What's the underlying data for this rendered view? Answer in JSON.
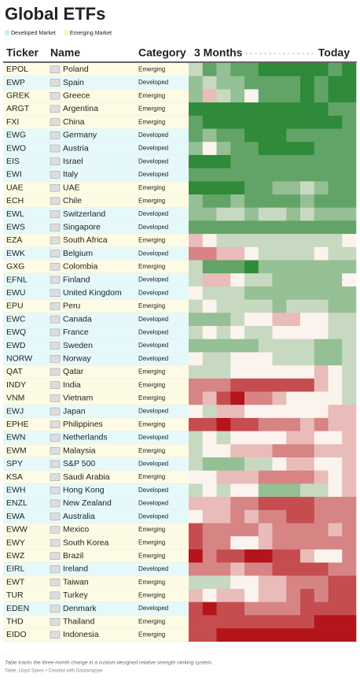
{
  "title": "Global ETFs",
  "legend": [
    {
      "label": "Developed Market",
      "color": "#c9f1f3"
    },
    {
      "label": "Emerging Market",
      "color": "#fbf5c4"
    }
  ],
  "headers": {
    "ticker": "Ticker",
    "name": "Name",
    "category": "Category",
    "start": "3 Months",
    "end": "Today"
  },
  "heat_scale": {
    "min": -4,
    "max": 4,
    "low_color": "#b3151b",
    "mid_color": "#fbf3ee",
    "high_color": "#2f8a3a"
  },
  "row_categories": {
    "Developed": "#e6f9fa",
    "Emerging": "#fdfbe4"
  },
  "rows": [
    {
      "ticker": "EPOL",
      "name": "Poland",
      "category": "Emerging",
      "heat": [
        1,
        3,
        2,
        3,
        3,
        4,
        4,
        4,
        4,
        4,
        3,
        4
      ]
    },
    {
      "ticker": "EWP",
      "name": "Spain",
      "category": "Developed",
      "heat": [
        2,
        1,
        2,
        2,
        3,
        3,
        3,
        3,
        4,
        3,
        4,
        4
      ]
    },
    {
      "ticker": "GREK",
      "name": "Greece",
      "category": "Emerging",
      "heat": [
        2,
        -1,
        1,
        2,
        0,
        3,
        3,
        3,
        4,
        3,
        4,
        4
      ]
    },
    {
      "ticker": "ARGT",
      "name": "Argentina",
      "category": "Emerging",
      "heat": [
        4,
        4,
        4,
        4,
        4,
        4,
        4,
        4,
        4,
        4,
        3,
        3
      ]
    },
    {
      "ticker": "FXI",
      "name": "China",
      "category": "Emerging",
      "heat": [
        3,
        4,
        4,
        4,
        4,
        4,
        4,
        4,
        4,
        4,
        4,
        3
      ]
    },
    {
      "ticker": "EWG",
      "name": "Germany",
      "category": "Developed",
      "heat": [
        3,
        2,
        3,
        3,
        4,
        4,
        4,
        3,
        3,
        3,
        3,
        3
      ]
    },
    {
      "ticker": "EWO",
      "name": "Austria",
      "category": "Developed",
      "heat": [
        2,
        0,
        2,
        3,
        3,
        4,
        4,
        4,
        4,
        3,
        3,
        3
      ]
    },
    {
      "ticker": "EIS",
      "name": "Israel",
      "category": "Developed",
      "heat": [
        4,
        4,
        4,
        3,
        3,
        3,
        3,
        3,
        3,
        3,
        3,
        3
      ]
    },
    {
      "ticker": "EWI",
      "name": "Italy",
      "category": "Developed",
      "heat": [
        3,
        3,
        3,
        3,
        3,
        3,
        3,
        3,
        3,
        3,
        3,
        3
      ]
    },
    {
      "ticker": "UAE",
      "name": "UAE",
      "category": "Emerging",
      "heat": [
        4,
        4,
        4,
        4,
        3,
        3,
        2,
        2,
        1,
        2,
        3,
        3
      ]
    },
    {
      "ticker": "ECH",
      "name": "Chile",
      "category": "Emerging",
      "heat": [
        2,
        3,
        3,
        2,
        3,
        3,
        3,
        3,
        2,
        3,
        3,
        3
      ]
    },
    {
      "ticker": "EWL",
      "name": "Switzerland",
      "category": "Developed",
      "heat": [
        2,
        2,
        1,
        1,
        2,
        1,
        1,
        2,
        1,
        2,
        2,
        2
      ]
    },
    {
      "ticker": "EWS",
      "name": "Singapore",
      "category": "Developed",
      "heat": [
        3,
        3,
        3,
        3,
        3,
        3,
        3,
        3,
        3,
        3,
        3,
        3
      ]
    },
    {
      "ticker": "EZA",
      "name": "South Africa",
      "category": "Emerging",
      "heat": [
        -1,
        0,
        1,
        1,
        1,
        1,
        1,
        1,
        1,
        1,
        1,
        0
      ]
    },
    {
      "ticker": "EWK",
      "name": "Belgium",
      "category": "Developed",
      "heat": [
        -2,
        -2,
        -1,
        -1,
        0,
        1,
        1,
        1,
        1,
        0,
        1,
        1
      ]
    },
    {
      "ticker": "GXG",
      "name": "Colombia",
      "category": "Emerging",
      "heat": [
        1,
        3,
        3,
        3,
        4,
        2,
        2,
        2,
        2,
        2,
        2,
        2
      ]
    },
    {
      "ticker": "EFNL",
      "name": "Finland",
      "category": "Developed",
      "heat": [
        1,
        -1,
        -1,
        0,
        1,
        1,
        2,
        2,
        2,
        2,
        2,
        0
      ]
    },
    {
      "ticker": "EWU",
      "name": "United Kingdom",
      "category": "Developed",
      "heat": [
        0,
        1,
        1,
        1,
        2,
        2,
        2,
        2,
        2,
        2,
        2,
        2
      ]
    },
    {
      "ticker": "EPU",
      "name": "Peru",
      "category": "Emerging",
      "heat": [
        1,
        0,
        1,
        1,
        1,
        1,
        2,
        1,
        1,
        1,
        2,
        2
      ]
    },
    {
      "ticker": "EWC",
      "name": "Canada",
      "category": "Developed",
      "heat": [
        2,
        2,
        2,
        1,
        0,
        0,
        -1,
        -1,
        0,
        0,
        1,
        1
      ]
    },
    {
      "ticker": "EWQ",
      "name": "France",
      "category": "Developed",
      "heat": [
        1,
        0,
        1,
        0,
        1,
        1,
        0,
        0,
        0,
        0,
        1,
        1
      ]
    },
    {
      "ticker": "EWD",
      "name": "Sweden",
      "category": "Developed",
      "heat": [
        2,
        2,
        2,
        2,
        2,
        1,
        1,
        1,
        1,
        2,
        2,
        1
      ]
    },
    {
      "ticker": "NORW",
      "name": "Norway",
      "category": "Developed",
      "heat": [
        0,
        1,
        1,
        0,
        0,
        0,
        1,
        1,
        1,
        2,
        2,
        1
      ]
    },
    {
      "ticker": "QAT",
      "name": "Qatar",
      "category": "Emerging",
      "heat": [
        1,
        1,
        1,
        0,
        0,
        0,
        0,
        0,
        0,
        -1,
        0,
        1
      ]
    },
    {
      "ticker": "INDY",
      "name": "India",
      "category": "Emerging",
      "heat": [
        -2,
        -2,
        -2,
        -3,
        -3,
        -3,
        -3,
        -3,
        -3,
        -1,
        0,
        1
      ]
    },
    {
      "ticker": "VNM",
      "name": "Vietnam",
      "category": "Emerging",
      "heat": [
        -2,
        -1,
        -3,
        -4,
        -2,
        -2,
        -1,
        0,
        0,
        0,
        0,
        1
      ]
    },
    {
      "ticker": "EWJ",
      "name": "Japan",
      "category": "Developed",
      "heat": [
        0,
        1,
        -1,
        -1,
        0,
        0,
        0,
        0,
        0,
        0,
        -1,
        -1
      ]
    },
    {
      "ticker": "EPHE",
      "name": "Philippines",
      "category": "Emerging",
      "heat": [
        -3,
        -3,
        -4,
        -3,
        -3,
        -2,
        -2,
        -2,
        -1,
        -2,
        -1,
        -1
      ]
    },
    {
      "ticker": "EWN",
      "name": "Netherlands",
      "category": "Developed",
      "heat": [
        1,
        0,
        1,
        0,
        0,
        0,
        0,
        -1,
        -1,
        0,
        0,
        -1
      ]
    },
    {
      "ticker": "EWM",
      "name": "Malaysia",
      "category": "Emerging",
      "heat": [
        1,
        0,
        0,
        -1,
        -1,
        -1,
        -2,
        -2,
        -2,
        -1,
        -1,
        -1
      ]
    },
    {
      "ticker": "SPY",
      "name": "S&P 500",
      "category": "Developed",
      "heat": [
        1,
        2,
        2,
        2,
        1,
        1,
        0,
        -1,
        -1,
        0,
        0,
        -1
      ]
    },
    {
      "ticker": "KSA",
      "name": "Saudi Arabia",
      "category": "Emerging",
      "heat": [
        0,
        0,
        -1,
        -1,
        -1,
        -2,
        -2,
        -2,
        -2,
        -1,
        0,
        -1
      ]
    },
    {
      "ticker": "EWH",
      "name": "Hong Kong",
      "category": "Developed",
      "heat": [
        1,
        0,
        1,
        0,
        0,
        2,
        2,
        2,
        1,
        1,
        0,
        -1
      ]
    },
    {
      "ticker": "ENZL",
      "name": "New Zealand",
      "category": "Developed",
      "heat": [
        -1,
        -1,
        -1,
        -2,
        -2,
        -3,
        -3,
        -3,
        -3,
        -2,
        -2,
        -2
      ]
    },
    {
      "ticker": "EWA",
      "name": "Australia",
      "category": "Developed",
      "heat": [
        0,
        -1,
        -1,
        -2,
        -1,
        -2,
        -2,
        -3,
        -3,
        -2,
        -2,
        -2
      ]
    },
    {
      "ticker": "EWW",
      "name": "Mexico",
      "category": "Emerging",
      "heat": [
        -3,
        -2,
        -2,
        -2,
        -2,
        -1,
        -2,
        -2,
        -2,
        -2,
        -1,
        -2
      ]
    },
    {
      "ticker": "EWY",
      "name": "South Korea",
      "category": "Emerging",
      "heat": [
        -3,
        -2,
        -2,
        0,
        0,
        -1,
        -2,
        -2,
        -2,
        -2,
        -2,
        -2
      ]
    },
    {
      "ticker": "EWZ",
      "name": "Brazil",
      "category": "Emerging",
      "heat": [
        -4,
        -2,
        -3,
        -3,
        -4,
        -4,
        -3,
        -3,
        -1,
        0,
        0,
        -2
      ]
    },
    {
      "ticker": "EIRL",
      "name": "Ireland",
      "category": "Developed",
      "heat": [
        -2,
        -2,
        -2,
        -1,
        -2,
        -2,
        -3,
        -3,
        -3,
        -3,
        -2,
        -2
      ]
    },
    {
      "ticker": "EWT",
      "name": "Taiwan",
      "category": "Emerging",
      "heat": [
        1,
        1,
        1,
        0,
        0,
        -1,
        -1,
        -2,
        -2,
        -2,
        -3,
        -3
      ]
    },
    {
      "ticker": "TUR",
      "name": "Turkey",
      "category": "Emerging",
      "heat": [
        -1,
        0,
        -1,
        -1,
        0,
        -1,
        -1,
        -2,
        -3,
        -2,
        -3,
        -3
      ]
    },
    {
      "ticker": "EDEN",
      "name": "Denmark",
      "category": "Developed",
      "heat": [
        -3,
        -4,
        -3,
        -3,
        -2,
        -2,
        -2,
        -2,
        -3,
        -3,
        -3,
        -3
      ]
    },
    {
      "ticker": "THD",
      "name": "Thailand",
      "category": "Emerging",
      "heat": [
        -3,
        -3,
        -3,
        -3,
        -3,
        -3,
        -3,
        -3,
        -3,
        -4,
        -4,
        -4
      ]
    },
    {
      "ticker": "EIDO",
      "name": "Indonesia",
      "category": "Emerging",
      "heat": [
        -3,
        -3,
        -4,
        -4,
        -4,
        -4,
        -4,
        -4,
        -4,
        -4,
        -4,
        -4
      ]
    }
  ],
  "footer": {
    "note": "Table tracks the three-month change in a custom-designed relative strength ranking system.",
    "source": "Table: Lloyd Sykes • Created with Datawrapper"
  }
}
